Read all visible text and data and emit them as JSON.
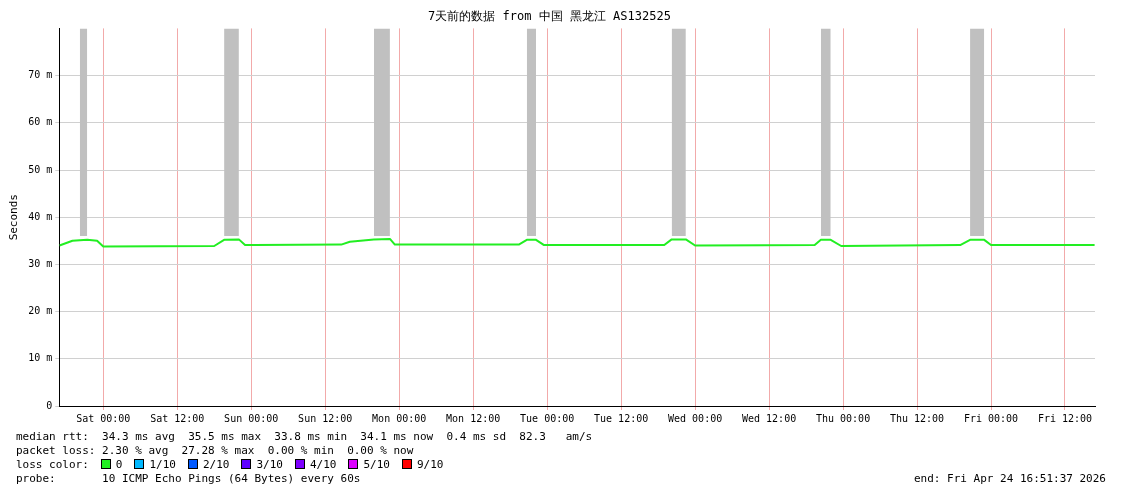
{
  "chart_data": {
    "type": "line",
    "title": "7天前的数据 from 中国 黑龙江 AS132525",
    "ylabel": "Seconds",
    "xlim": [
      "2026-04-17T16:52",
      "2026-04-24T16:52"
    ],
    "ylim": [
      0,
      80
    ],
    "xticks": [
      {
        "value": "2026-04-18T00:00",
        "label": "Sat 00:00"
      },
      {
        "value": "2026-04-18T12:00",
        "label": "Sat 12:00"
      },
      {
        "value": "2026-04-19T00:00",
        "label": "Sun 00:00"
      },
      {
        "value": "2026-04-19T12:00",
        "label": "Sun 12:00"
      },
      {
        "value": "2026-04-20T00:00",
        "label": "Mon 00:00"
      },
      {
        "value": "2026-04-20T12:00",
        "label": "Mon 12:00"
      },
      {
        "value": "2026-04-21T00:00",
        "label": "Tue 00:00"
      },
      {
        "value": "2026-04-21T12:00",
        "label": "Tue 12:00"
      },
      {
        "value": "2026-04-22T00:00",
        "label": "Wed 00:00"
      },
      {
        "value": "2026-04-22T12:00",
        "label": "Wed 12:00"
      },
      {
        "value": "2026-04-23T00:00",
        "label": "Thu 00:00"
      },
      {
        "value": "2026-04-23T12:00",
        "label": "Thu 12:00"
      },
      {
        "value": "2026-04-24T00:00",
        "label": "Fri 00:00"
      },
      {
        "value": "2026-04-24T12:00",
        "label": "Fri 12:00"
      }
    ],
    "yticks": [
      0,
      {
        "value": 10,
        "label": "10 m"
      },
      {
        "value": 20,
        "label": "20 m"
      },
      {
        "value": 30,
        "label": "30 m"
      },
      {
        "value": 40,
        "label": "40 m"
      },
      {
        "value": 50,
        "label": "50 m"
      },
      {
        "value": 60,
        "label": "60 m"
      },
      {
        "value": 70,
        "label": "70 m"
      }
    ],
    "grid": true,
    "legend": false,
    "marker": "none",
    "line_style": "solid",
    "series": [
      {
        "color": "#22ee22",
        "x": [
          "2026-04-17T16:54",
          "2026-04-17T19:00",
          "2026-04-17T20:12",
          "2026-04-17T21:24",
          "2026-04-17T23:00",
          "2026-04-18T00:00",
          "2026-04-18T18:00",
          "2026-04-18T19:36",
          "2026-04-18T22:00",
          "2026-04-18T23:00",
          "2026-04-19T14:36",
          "2026-04-19T16:00",
          "2026-04-19T19:54",
          "2026-04-19T22:30",
          "2026-04-19T23:18",
          "2026-04-20T19:24",
          "2026-04-20T20:42",
          "2026-04-20T22:12",
          "2026-04-20T23:30",
          "2026-04-21T19:00",
          "2026-04-21T20:12",
          "2026-04-21T22:30",
          "2026-04-22T00:00",
          "2026-04-22T19:24",
          "2026-04-22T20:24",
          "2026-04-22T22:00",
          "2026-04-22T23:42",
          "2026-04-23T19:00",
          "2026-04-23T20:36",
          "2026-04-23T22:54",
          "2026-04-24T00:00",
          "2026-04-24T16:48"
        ],
        "values": [
          34.0,
          35.0,
          35.1,
          35.2,
          35.0,
          33.8,
          33.9,
          35.2,
          35.3,
          34.1,
          34.2,
          34.8,
          35.3,
          35.4,
          34.2,
          34.2,
          35.2,
          35.2,
          34.1,
          34.1,
          35.3,
          35.3,
          34.0,
          34.1,
          35.2,
          35.2,
          33.9,
          34.1,
          35.2,
          35.2,
          34.1,
          34.1
        ],
        "lower": [
          null,
          null,
          36,
          36,
          null,
          null,
          null,
          36,
          36,
          null,
          null,
          null,
          36,
          36,
          null,
          null,
          36,
          36,
          null,
          null,
          36,
          36,
          null,
          null,
          36,
          36,
          null,
          null,
          36,
          36,
          null,
          null
        ],
        "upper": [
          null,
          null,
          80,
          80,
          null,
          null,
          null,
          80,
          80,
          null,
          null,
          null,
          80,
          80,
          null,
          null,
          80,
          80,
          null,
          null,
          80,
          80,
          null,
          null,
          80,
          80,
          null,
          null,
          80,
          80,
          null,
          null
        ]
      }
    ],
    "annotations": [
      "median rtt:  34.3 ms avg  35.5 ms max  33.8 ms min  34.1 ms now  0.4 ms sd  82.3   am/s",
      "packet loss: 2.30 % avg  27.28 % max  0.00 % min  0.00 % now",
      "loss color:",
      "0",
      "1/10",
      "2/10",
      "3/10",
      "4/10",
      "5/10",
      "9/10",
      "probe:       10 ICMP Echo Pings (64 Bytes) every 60s",
      "end: Fri Apr 24 16:51:37 2026"
    ]
  }
}
